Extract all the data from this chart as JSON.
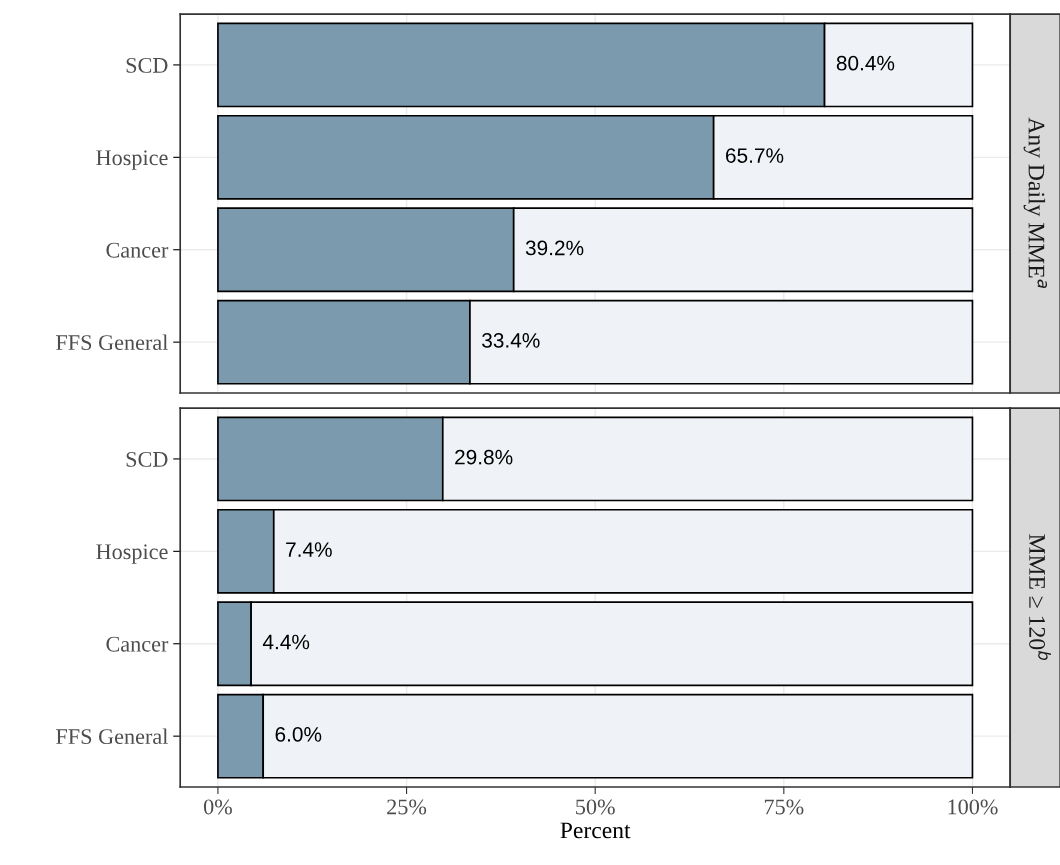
{
  "chart_data": [
    {
      "type": "bar",
      "orientation": "horizontal",
      "stacked": true,
      "annotations": [
        "Any Daily MME$^{a}$"
      ],
      "categories": [
        "SCD",
        "Hospice",
        "Cancer",
        "FFS General"
      ],
      "series": [
        {
          "color": "#7b9aae",
          "values": [
            80.4,
            65.7,
            39.2,
            33.4
          ],
          "value_labels": [
            "80.4%",
            "65.7%",
            "39.2%",
            "33.4%"
          ]
        },
        {
          "color": "#eff3f7",
          "values": [
            19.6,
            34.3,
            60.8,
            66.6
          ]
        }
      ],
      "xlim": [
        -5,
        105
      ],
      "xticks": [
        {
          "value": 0,
          "label": null
        },
        {
          "value": 25,
          "label": null
        },
        {
          "value": 50,
          "label": null
        },
        {
          "value": 75,
          "label": null
        },
        {
          "value": 100,
          "label": null
        }
      ],
      "tick_labels": "y",
      "grid": true,
      "legend": false
    },
    {
      "type": "bar",
      "orientation": "horizontal",
      "stacked": true,
      "annotations": [
        "MME ≥ 120$^{b}$"
      ],
      "xlabel": "Percent",
      "categories": [
        "SCD",
        "Hospice",
        "Cancer",
        "FFS General"
      ],
      "series": [
        {
          "color": "#7b9aae",
          "values": [
            29.8,
            7.4,
            4.4,
            6.0
          ],
          "value_labels": [
            "29.8%",
            "7.4%",
            "4.4%",
            "6.0%"
          ]
        },
        {
          "color": "#eff3f7",
          "values": [
            70.2,
            92.6,
            95.6,
            94.0
          ]
        }
      ],
      "xlim": [
        -5,
        105
      ],
      "xticks": [
        {
          "value": 0,
          "label": "0%"
        },
        {
          "value": 25,
          "label": "25%"
        },
        {
          "value": 50,
          "label": "50%"
        },
        {
          "value": 75,
          "label": "75%"
        },
        {
          "value": 100,
          "label": "100%"
        }
      ],
      "grid": true,
      "legend": false
    }
  ]
}
